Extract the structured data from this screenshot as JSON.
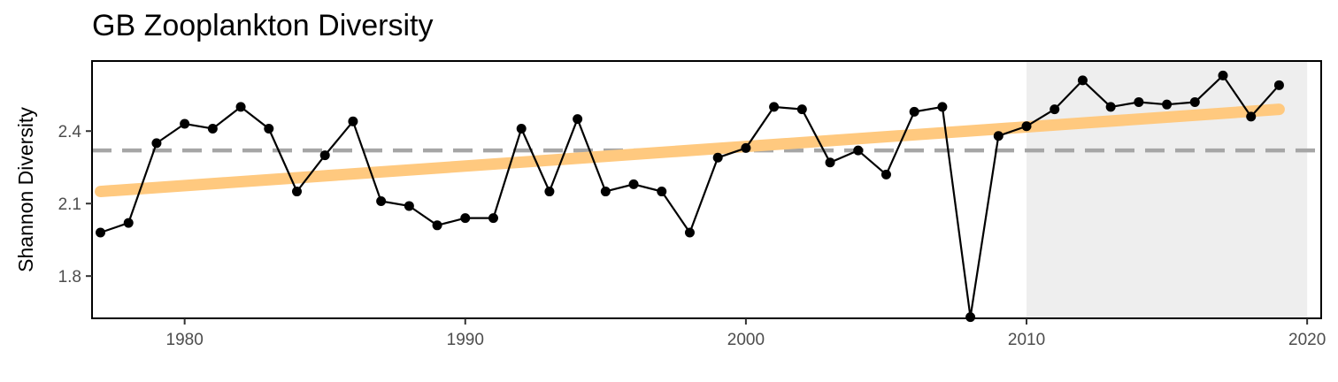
{
  "chart_data": {
    "type": "line",
    "title": "GB Zooplankton Diversity",
    "xlabel": "",
    "ylabel": "Shannon Diversity",
    "xlim": [
      1976.7,
      2020.5
    ],
    "ylim": [
      1.625,
      2.69
    ],
    "x_ticks": [
      1980,
      1990,
      2000,
      2010,
      2020
    ],
    "y_ticks": [
      1.8,
      2.1,
      2.4
    ],
    "grid": false,
    "series": [
      {
        "x": [
          1977,
          1978,
          1979,
          1980,
          1981,
          1982,
          1983,
          1984,
          1985,
          1986,
          1987,
          1988,
          1989,
          1990,
          1991,
          1992,
          1993,
          1994,
          1995,
          1996,
          1997,
          1998,
          1999,
          2000,
          2001,
          2002,
          2003,
          2004,
          2005,
          2006,
          2007,
          2008,
          2009,
          2010,
          2011,
          2012,
          2013,
          2014,
          2015,
          2016,
          2017,
          2018,
          2019
        ],
        "values": [
          1.98,
          2.02,
          2.35,
          2.43,
          2.41,
          2.5,
          2.41,
          2.15,
          2.3,
          2.44,
          2.11,
          2.09,
          2.01,
          2.04,
          2.04,
          2.41,
          2.15,
          2.45,
          2.15,
          2.18,
          2.15,
          1.98,
          2.29,
          2.33,
          2.5,
          2.49,
          2.27,
          2.32,
          2.22,
          2.48,
          2.5,
          1.63,
          2.38,
          2.42,
          2.49,
          2.61,
          2.5,
          2.52,
          2.51,
          2.52,
          2.63,
          2.46,
          2.59
        ],
        "color": "#000000"
      }
    ],
    "trend": {
      "x": [
        1977,
        2019
      ],
      "values": [
        2.15,
        2.49
      ],
      "color": "#FFC97F"
    },
    "mean": {
      "value": 2.32,
      "color": "#A6A6A6",
      "style": "dashed"
    },
    "highlight_region": {
      "x": [
        2010,
        2020
      ],
      "color": "#EEEEEE"
    }
  }
}
